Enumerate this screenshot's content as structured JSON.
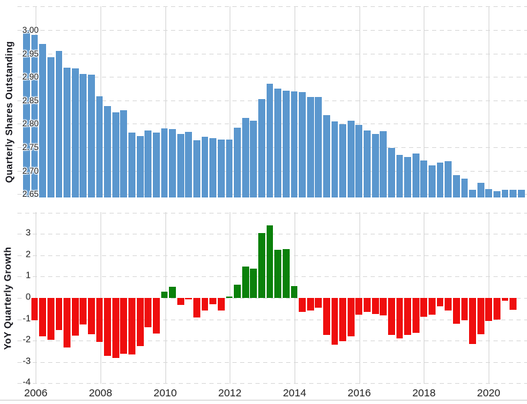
{
  "page": {
    "background": "#ffffff"
  },
  "colors": {
    "blue_bar": "#5b97ce",
    "green_bar": "#0b810b",
    "red_bar": "#ef0e0e",
    "gridline": "#d9d9d9",
    "axis_line": "#cccccc",
    "tick_text": "#1a1a1a",
    "title_text": "#14141b"
  },
  "x_axis": {
    "tick_labels": [
      "2006",
      "2008",
      "2010",
      "2012",
      "2014",
      "2016",
      "2018",
      "2020"
    ]
  },
  "chart_data": [
    {
      "id": "quarterly-shares-outstanding",
      "type": "bar",
      "title": "",
      "ylabel": "Quarterly Shares Outstanding",
      "legend": "none",
      "grid": true,
      "bar_color": "#5b97ce",
      "ylim": [
        2.64,
        3.055
      ],
      "ytick_labels": [
        "3.00",
        "2.95",
        "2.90",
        "2.85",
        "2.80",
        "2.75",
        "2.70",
        "2.65"
      ],
      "ytick_values": [
        3.0,
        2.95,
        2.9,
        2.85,
        2.8,
        2.75,
        2.7,
        2.65
      ],
      "x": [
        "2005-Q4",
        "2006-Q1",
        "2006-Q2",
        "2006-Q3",
        "2006-Q4",
        "2007-Q1",
        "2007-Q2",
        "2007-Q3",
        "2007-Q4",
        "2008-Q1",
        "2008-Q2",
        "2008-Q3",
        "2008-Q4",
        "2009-Q1",
        "2009-Q2",
        "2009-Q3",
        "2009-Q4",
        "2010-Q1",
        "2010-Q2",
        "2010-Q3",
        "2010-Q4",
        "2011-Q1",
        "2011-Q2",
        "2011-Q3",
        "2011-Q4",
        "2012-Q1",
        "2012-Q2",
        "2012-Q3",
        "2012-Q4",
        "2013-Q1",
        "2013-Q2",
        "2013-Q3",
        "2013-Q4",
        "2014-Q1",
        "2014-Q2",
        "2014-Q3",
        "2014-Q4",
        "2015-Q1",
        "2015-Q2",
        "2015-Q3",
        "2015-Q4",
        "2016-Q1",
        "2016-Q2",
        "2016-Q3",
        "2016-Q4",
        "2017-Q1",
        "2017-Q2",
        "2017-Q3",
        "2017-Q4",
        "2018-Q1",
        "2018-Q2",
        "2018-Q3",
        "2018-Q4",
        "2019-Q1",
        "2019-Q2",
        "2019-Q3",
        "2019-Q4",
        "2020-Q1",
        "2020-Q2",
        "2020-Q3",
        "2020-Q4",
        "2021-Q1"
      ],
      "values": [
        3.0,
        2.989,
        2.971,
        2.942,
        2.955,
        2.919,
        2.918,
        2.907,
        2.905,
        2.858,
        2.838,
        2.825,
        2.829,
        2.782,
        2.774,
        2.786,
        2.781,
        2.79,
        2.789,
        2.778,
        2.783,
        2.765,
        2.772,
        2.769,
        2.767,
        2.767,
        2.791,
        2.812,
        2.806,
        2.853,
        2.886,
        2.875,
        2.871,
        2.869,
        2.868,
        2.857,
        2.857,
        2.819,
        2.805,
        2.799,
        2.806,
        2.797,
        2.786,
        2.778,
        2.784,
        2.748,
        2.733,
        2.729,
        2.736,
        2.722,
        2.711,
        2.718,
        2.72,
        2.69,
        2.683,
        2.66,
        2.674,
        2.661,
        2.656,
        2.66,
        2.66,
        2.66
      ]
    },
    {
      "id": "yoy-quarterly-growth",
      "type": "bar",
      "title": "",
      "ylabel": "YoY Quarterly Growth",
      "legend": "none",
      "grid": true,
      "positive_color": "#0b810b",
      "negative_color": "#ef0e0e",
      "ylim": [
        -4.2,
        4.1
      ],
      "ytick_labels": [
        "3",
        "2",
        "1",
        "0",
        "-1",
        "-2",
        "-3",
        "-4"
      ],
      "ytick_values": [
        3,
        2,
        1,
        0,
        -1,
        -2,
        -3,
        -4
      ],
      "x": [
        "2006-Q1",
        "2006-Q2",
        "2006-Q3",
        "2006-Q4",
        "2007-Q1",
        "2007-Q2",
        "2007-Q3",
        "2007-Q4",
        "2008-Q1",
        "2008-Q2",
        "2008-Q3",
        "2008-Q4",
        "2009-Q1",
        "2009-Q2",
        "2009-Q3",
        "2009-Q4",
        "2010-Q1",
        "2010-Q2",
        "2010-Q3",
        "2010-Q4",
        "2011-Q1",
        "2011-Q2",
        "2011-Q3",
        "2011-Q4",
        "2012-Q1",
        "2012-Q2",
        "2012-Q3",
        "2012-Q4",
        "2013-Q1",
        "2013-Q2",
        "2013-Q3",
        "2013-Q4",
        "2014-Q1",
        "2014-Q2",
        "2014-Q3",
        "2014-Q4",
        "2015-Q1",
        "2015-Q2",
        "2015-Q3",
        "2015-Q4",
        "2016-Q1",
        "2016-Q2",
        "2016-Q3",
        "2016-Q4",
        "2017-Q1",
        "2017-Q2",
        "2017-Q3",
        "2017-Q4",
        "2018-Q1",
        "2018-Q2",
        "2018-Q3",
        "2018-Q4",
        "2019-Q1",
        "2019-Q2",
        "2019-Q3",
        "2019-Q4",
        "2020-Q1",
        "2020-Q2",
        "2020-Q3",
        "2020-Q4"
      ],
      "values": [
        -1.03,
        -1.78,
        -1.95,
        -1.5,
        -2.33,
        -1.75,
        -1.25,
        -1.7,
        -2.05,
        -2.72,
        -2.82,
        -2.62,
        -2.66,
        -2.25,
        -1.38,
        -1.68,
        0.3,
        0.52,
        -0.32,
        -0.06,
        -0.9,
        -0.58,
        -0.3,
        -0.6,
        0.07,
        0.62,
        1.48,
        1.38,
        3.05,
        3.4,
        2.25,
        2.3,
        0.56,
        -0.65,
        -0.58,
        -0.47,
        -1.72,
        -2.18,
        -2.01,
        -1.79,
        -0.78,
        -0.66,
        -0.75,
        -0.8,
        -1.73,
        -1.9,
        -1.74,
        -1.62,
        -0.88,
        -0.79,
        -0.39,
        -0.58,
        -1.2,
        -1.06,
        -2.15,
        -1.7,
        -1.08,
        -1.01,
        -0.12,
        -0.56
      ]
    }
  ]
}
